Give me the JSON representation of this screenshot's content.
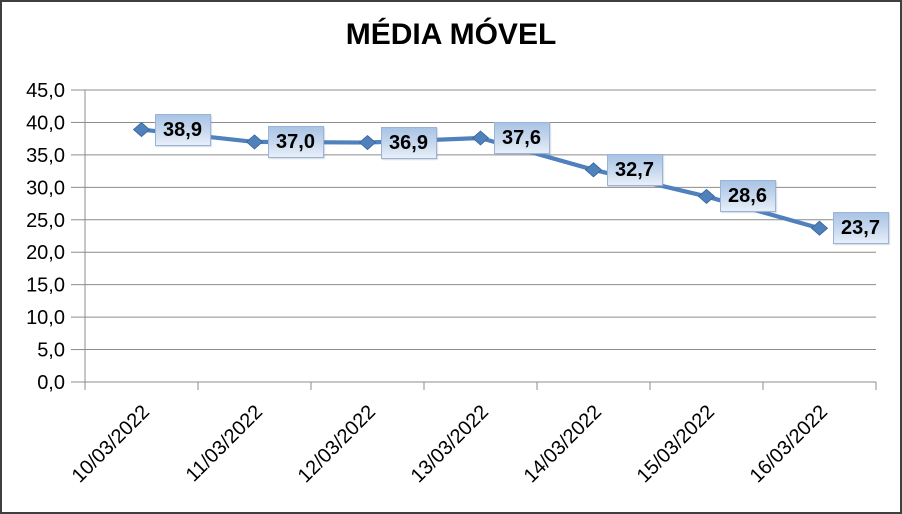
{
  "window": {
    "background": "#ffffff",
    "border_color": "#3f3f3f"
  },
  "chart_data": {
    "type": "line",
    "title": "MÉDIA MÓVEL",
    "categories": [
      "10/03/2022",
      "11/03/2022",
      "12/03/2022",
      "13/03/2022",
      "14/03/2022",
      "15/03/2022",
      "16/03/2022"
    ],
    "series": [
      {
        "values": [
          38.9,
          37.0,
          36.9,
          37.6,
          32.7,
          28.6,
          23.7
        ],
        "point_labels": [
          "38,9",
          "37,0",
          "36,9",
          "37,6",
          "32,7",
          "28,6",
          "23,7"
        ]
      }
    ],
    "xlabel": "",
    "ylabel": "",
    "ylim": [
      0,
      45
    ],
    "y_tick_step": 5,
    "y_tick_labels": [
      "0,0",
      "5,0",
      "10,0",
      "15,0",
      "20,0",
      "25,0",
      "30,0",
      "35,0",
      "40,0",
      "45,0"
    ],
    "grid": true,
    "legend": "none",
    "x_label_rotation_deg": -45,
    "marker_shape": "diamond",
    "colors": {
      "series_line": "#4f81bd",
      "marker_fill": "#4f81bd",
      "marker_border": "#3a6494",
      "data_label_box_top": "#a9c4e4",
      "data_label_box_bottom": "#e8eff8",
      "data_label_border": "#9ab4d8",
      "data_label_text": "#000000",
      "gridline": "#8c8c8c",
      "axis_line": "#8c8c8c",
      "tick_label_text": "#000000",
      "title_text": "#000000"
    }
  }
}
